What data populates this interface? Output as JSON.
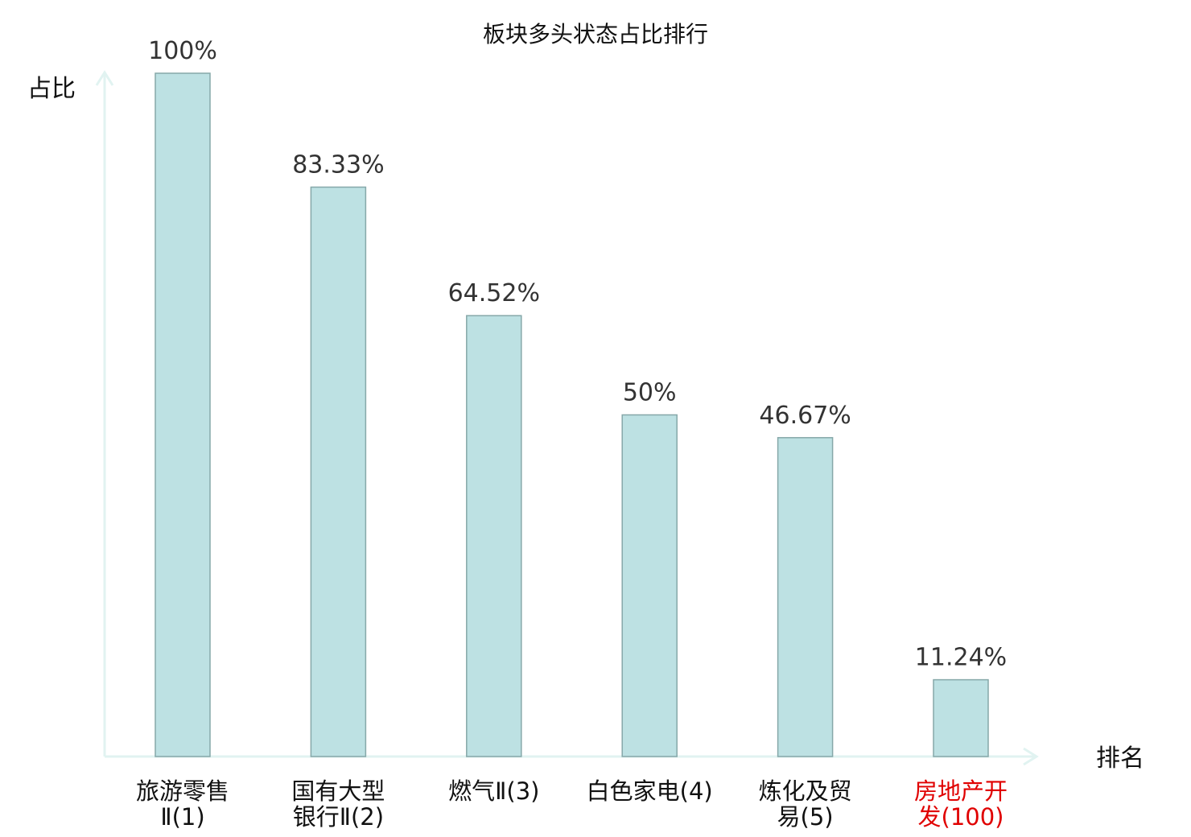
{
  "chart_data": {
    "type": "bar",
    "title": "板块多头状态占比排行",
    "ylabel": "占比",
    "xlabel": "排名",
    "ylim": [
      0,
      100
    ],
    "grid": false,
    "categories": [
      {
        "name": "旅游零售Ⅱ",
        "rank": "1",
        "lines": [
          "旅游零售",
          "Ⅱ(1)"
        ]
      },
      {
        "name": "国有大型银行Ⅱ",
        "rank": "2",
        "lines": [
          "国有大型",
          "银行Ⅱ(2)"
        ]
      },
      {
        "name": "燃气Ⅱ",
        "rank": "3",
        "lines": [
          "燃气Ⅱ(3)"
        ]
      },
      {
        "name": "白色家电",
        "rank": "4",
        "lines": [
          "白色家电(4)"
        ]
      },
      {
        "name": "炼化及贸易",
        "rank": "5",
        "lines": [
          "炼化及贸",
          "易(5)"
        ]
      },
      {
        "name": "房地产开发",
        "rank": "100",
        "lines": [
          "房地产开",
          "发(100)"
        ],
        "highlight": true
      }
    ],
    "values": [
      100,
      83.33,
      64.52,
      50,
      46.67,
      11.24
    ],
    "value_labels": [
      "100%",
      "83.33%",
      "64.52%",
      "50%",
      "46.67%",
      "11.24%"
    ],
    "colors": {
      "bar_fill": "#bde1e3",
      "bar_stroke": "#86a8a9",
      "axis": "#e1f3f1",
      "label_normal": "#111111",
      "label_highlight": "#e00000",
      "value_text": "#333333"
    }
  }
}
